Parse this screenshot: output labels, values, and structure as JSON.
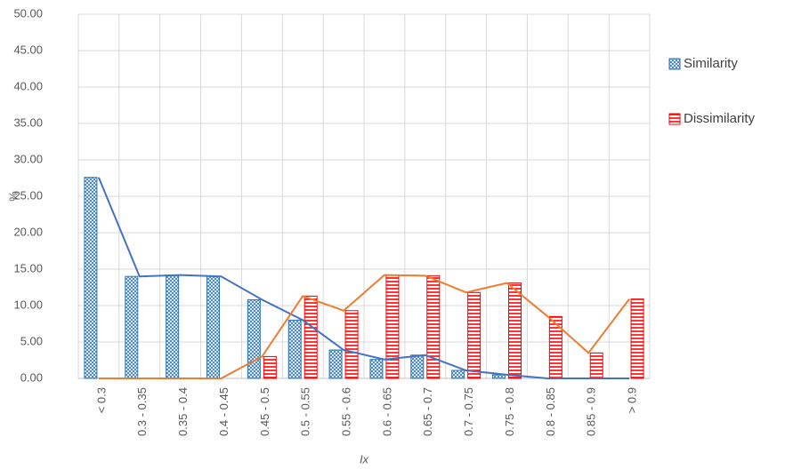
{
  "chart_data": {
    "type": "bar",
    "ylabel": "%",
    "xlabel": "Ix",
    "categories": [
      "< 0.3",
      "0.3 - 0.35",
      "0.35 - 0.4",
      "0.4 - 0.45",
      "0.45 - 0.5",
      "0.5 - 0.55",
      "0.55 - 0.6",
      "0.6 - 0.65",
      "0.65 - 0.7",
      "0.7 - 0.75",
      "0.75 - 0.8",
      "0.8 - 0.85",
      "0.85 - 0.9",
      "> 0.9"
    ],
    "series": [
      {
        "name": "Similarity",
        "color": "#2e75b6",
        "line_color": "#4472c4",
        "pattern": "crosshatch",
        "values": [
          27.6,
          14.0,
          14.2,
          14.0,
          10.8,
          8.0,
          3.9,
          2.6,
          3.2,
          1.1,
          0.5,
          0,
          0,
          0
        ]
      },
      {
        "name": "Dissimilarity",
        "color": "#ff0000",
        "line_color": "#ed7d31",
        "pattern": "horizontal",
        "values": [
          0,
          0,
          0,
          0,
          3.0,
          11.3,
          9.3,
          14.2,
          14.1,
          11.8,
          13.1,
          8.5,
          3.5,
          10.9
        ]
      }
    ],
    "ylim": [
      0,
      50
    ],
    "yticks": [
      {
        "value": 0,
        "label": "0.00"
      },
      {
        "value": 5,
        "label": "5.00"
      },
      {
        "value": 10,
        "label": "10.00"
      },
      {
        "value": 15,
        "label": "15.00"
      },
      {
        "value": 20,
        "label": "20.00"
      },
      {
        "value": 25,
        "label": "25.00"
      },
      {
        "value": 30,
        "label": "30.00"
      },
      {
        "value": 35,
        "label": "35.00"
      },
      {
        "value": 40,
        "label": "40.00"
      },
      {
        "value": 45,
        "label": "45.00"
      },
      {
        "value": 50,
        "label": "50.00"
      }
    ],
    "grid": true,
    "legend": "right"
  }
}
